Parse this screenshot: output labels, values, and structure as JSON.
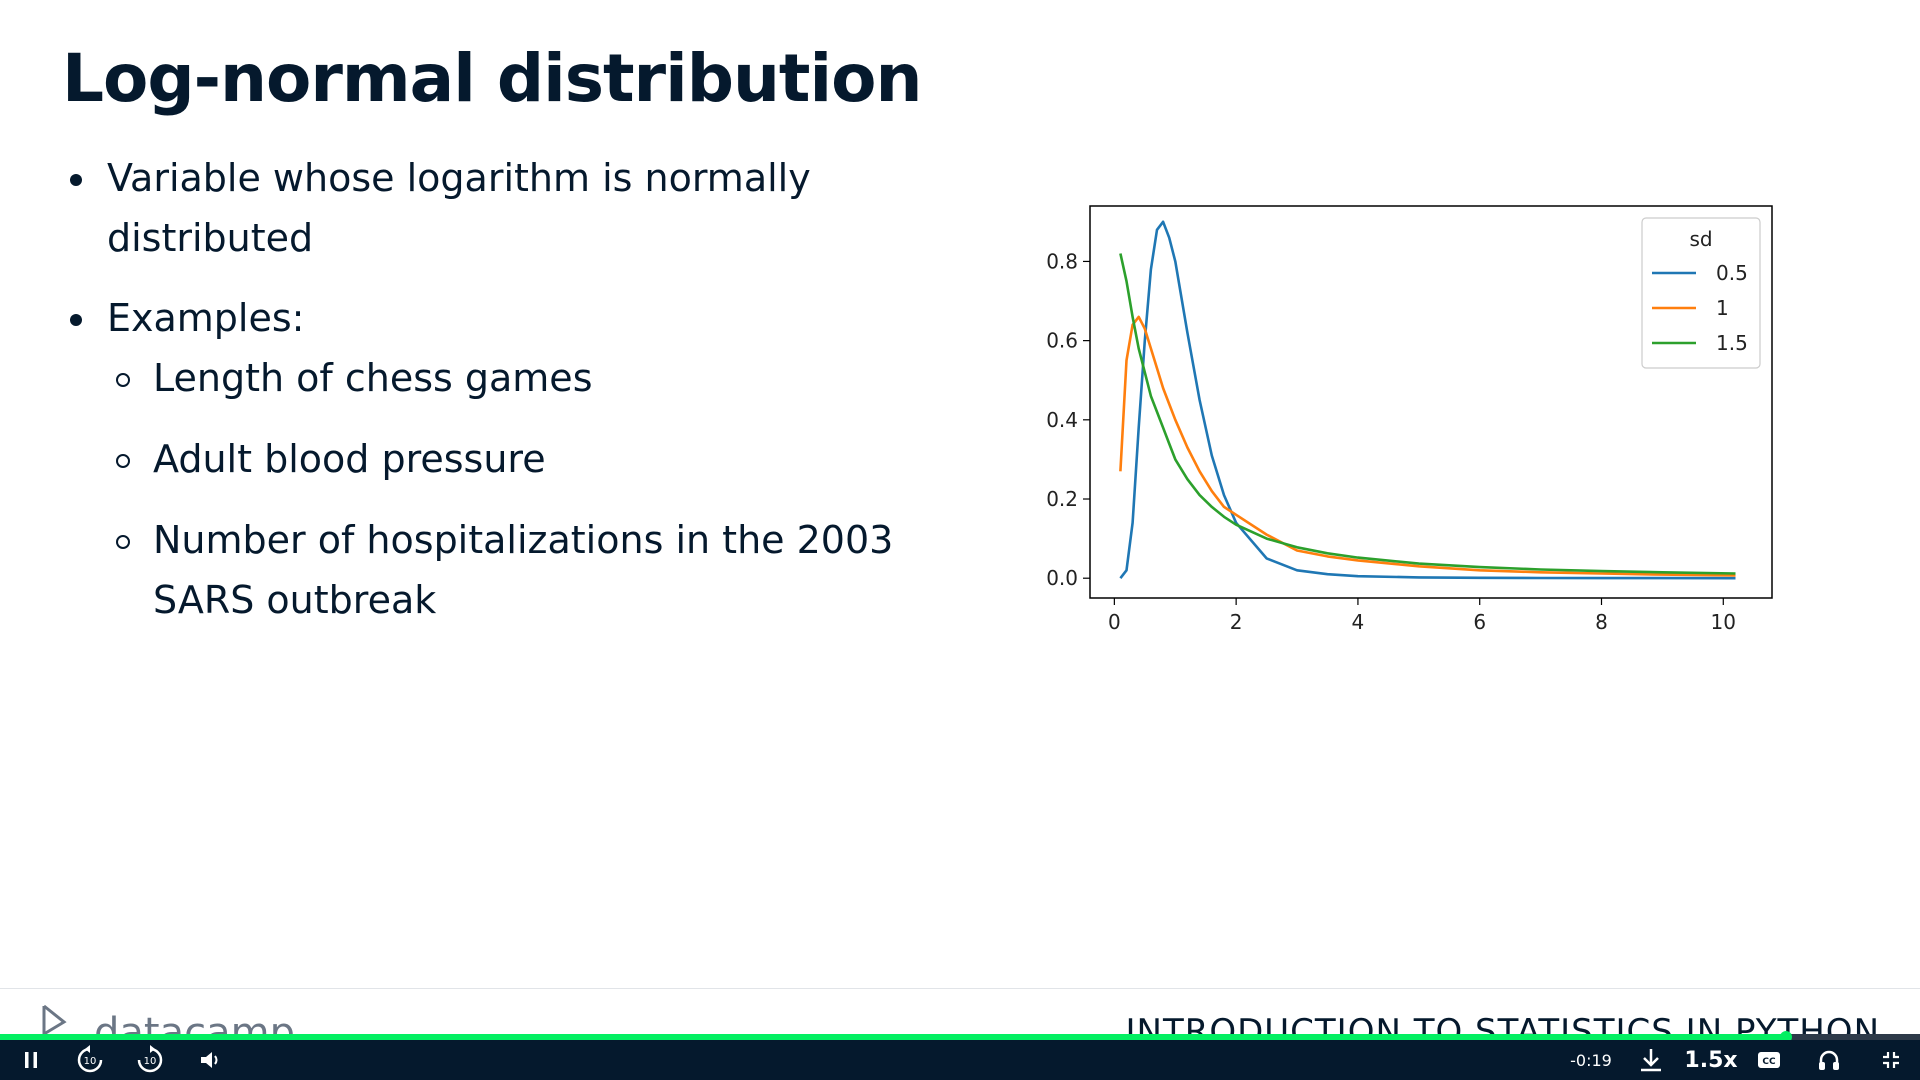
{
  "slide": {
    "title": "Log-normal distribution",
    "bullets": [
      {
        "lines": [
          "Variable whose logarithm is normally",
          "distributed"
        ]
      },
      {
        "lines": [
          "Examples:"
        ]
      }
    ],
    "subbullets": [
      {
        "lines": [
          "Length of chess games"
        ]
      },
      {
        "lines": [
          "Adult blood pressure"
        ]
      },
      {
        "lines": [
          "Number of hospitalizations in the 2003",
          "SARS outbreak"
        ]
      }
    ]
  },
  "chart_data": {
    "type": "line",
    "title": "",
    "xlabel": "",
    "ylabel": "",
    "xlim": [
      -0.4,
      10.8
    ],
    "ylim": [
      -0.05,
      0.94
    ],
    "xticks": [
      0,
      2,
      4,
      6,
      8,
      10
    ],
    "yticks": [
      0.0,
      0.2,
      0.4,
      0.6,
      0.8
    ],
    "legend": {
      "title": "sd",
      "position": "top-right"
    },
    "x": [
      0.1,
      0.2,
      0.3,
      0.4,
      0.5,
      0.6,
      0.7,
      0.8,
      0.9,
      1.0,
      1.2,
      1.4,
      1.6,
      1.8,
      2.0,
      2.5,
      3.0,
      3.5,
      4.0,
      5.0,
      6.0,
      7.0,
      8.0,
      9.0,
      10.2
    ],
    "series": [
      {
        "name": "0.5",
        "color": "#1f77b4",
        "values": [
          0.0,
          0.02,
          0.14,
          0.38,
          0.6,
          0.78,
          0.88,
          0.9,
          0.86,
          0.8,
          0.62,
          0.45,
          0.31,
          0.21,
          0.14,
          0.05,
          0.02,
          0.01,
          0.005,
          0.002,
          0.001,
          0.0005,
          0.0003,
          0.0002,
          0.0001
        ]
      },
      {
        "name": "1",
        "color": "#ff7f0e",
        "values": [
          0.27,
          0.55,
          0.64,
          0.66,
          0.63,
          0.58,
          0.53,
          0.48,
          0.44,
          0.4,
          0.33,
          0.27,
          0.22,
          0.18,
          0.16,
          0.11,
          0.07,
          0.055,
          0.045,
          0.03,
          0.02,
          0.015,
          0.012,
          0.009,
          0.007
        ]
      },
      {
        "name": "1.5",
        "color": "#2ca02c",
        "values": [
          0.82,
          0.75,
          0.66,
          0.58,
          0.52,
          0.46,
          0.42,
          0.38,
          0.34,
          0.3,
          0.25,
          0.21,
          0.18,
          0.155,
          0.135,
          0.1,
          0.078,
          0.063,
          0.052,
          0.037,
          0.028,
          0.022,
          0.018,
          0.015,
          0.012
        ]
      }
    ]
  },
  "footer": {
    "logo_text": "datacamp",
    "course_title": "INTRODUCTION TO STATISTICS IN PYTHON"
  },
  "player": {
    "time_remaining": "-0:19",
    "speed": "1.5x",
    "progress": 0.93,
    "skip_seconds": "10",
    "accent_color": "#03ef62"
  }
}
